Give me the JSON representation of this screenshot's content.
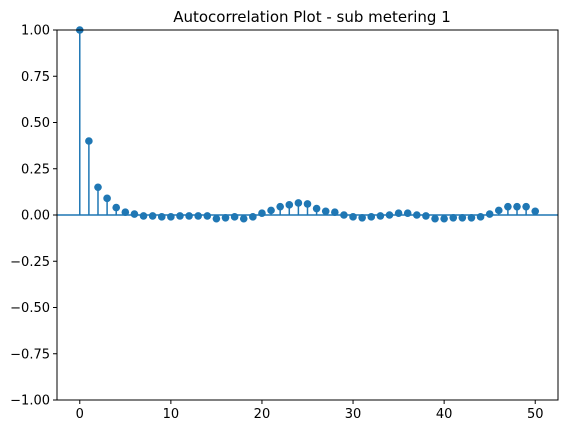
{
  "chart_data": {
    "type": "stem",
    "title": "Autocorrelation Plot - sub metering 1",
    "xlabel": "",
    "ylabel": "",
    "xlim": [
      -2.5,
      52.5
    ],
    "ylim": [
      -1.0,
      1.0
    ],
    "xticks": [
      0,
      10,
      20,
      30,
      40,
      50
    ],
    "yticks": [
      -1.0,
      -0.75,
      -0.5,
      -0.25,
      0.0,
      0.25,
      0.5,
      0.75,
      1.0
    ],
    "xtick_labels": [
      "0",
      "10",
      "20",
      "30",
      "40",
      "50"
    ],
    "ytick_labels": [
      "−1.00",
      "−0.75",
      "−0.50",
      "−0.25",
      "0.00",
      "0.25",
      "0.50",
      "0.75",
      "1.00"
    ],
    "grid": false,
    "series": [
      {
        "lags": [
          0,
          1,
          2,
          3,
          4,
          5,
          6,
          7,
          8,
          9,
          10,
          11,
          12,
          13,
          14,
          15,
          16,
          17,
          18,
          19,
          20,
          21,
          22,
          23,
          24,
          25,
          26,
          27,
          28,
          29,
          30,
          31,
          32,
          33,
          34,
          35,
          36,
          37,
          38,
          39,
          40,
          41,
          42,
          43,
          44,
          45,
          46,
          47,
          48,
          49,
          50
        ],
        "values": [
          1.0,
          0.4,
          0.15,
          0.09,
          0.04,
          0.015,
          0.005,
          -0.005,
          -0.005,
          -0.01,
          -0.01,
          -0.005,
          -0.005,
          -0.005,
          -0.005,
          -0.02,
          -0.015,
          -0.01,
          -0.02,
          -0.01,
          0.01,
          0.025,
          0.045,
          0.055,
          0.065,
          0.06,
          0.035,
          0.02,
          0.015,
          0.0,
          -0.01,
          -0.015,
          -0.01,
          -0.005,
          0.0,
          0.01,
          0.01,
          0.0,
          -0.005,
          -0.02,
          -0.02,
          -0.015,
          -0.015,
          -0.015,
          -0.01,
          0.005,
          0.025,
          0.045,
          0.045,
          0.045,
          0.02
        ]
      }
    ],
    "colors": {
      "series": "#1f77b4",
      "zero_line": "#1f77b4",
      "axes": "#000000"
    }
  }
}
